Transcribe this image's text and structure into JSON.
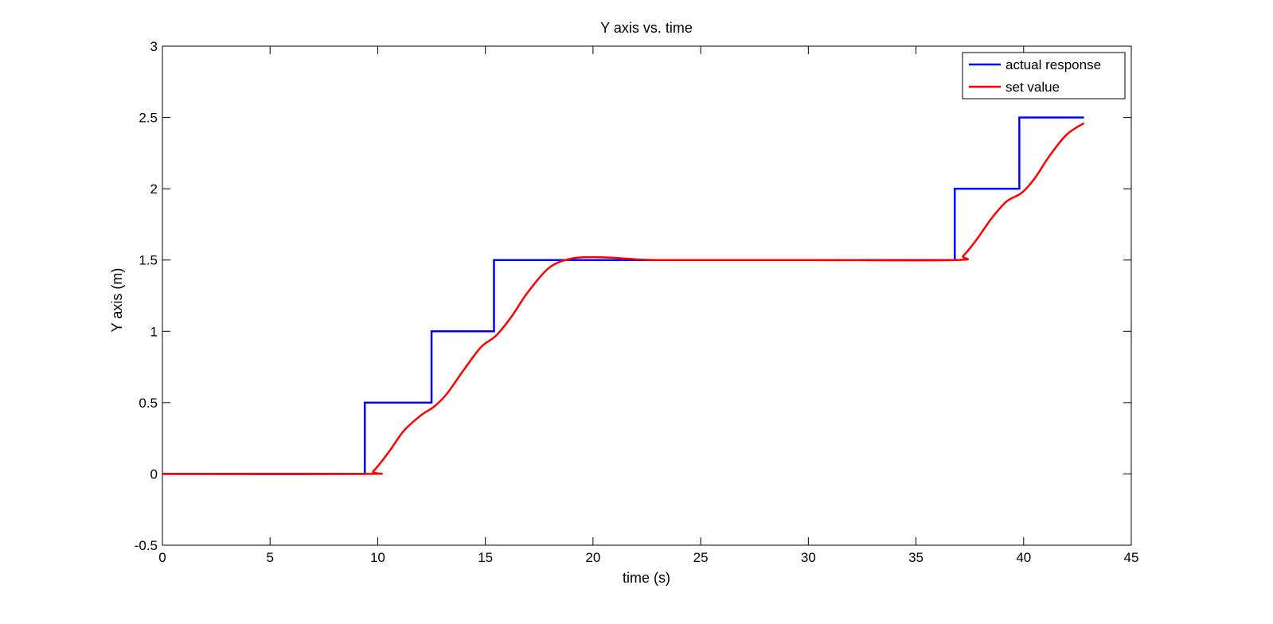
{
  "chart_data": {
    "type": "line",
    "title": "Y axis vs. time",
    "xlabel": "time (s)",
    "ylabel": "Y axis (m)",
    "xlim": [
      0,
      45
    ],
    "ylim": [
      -0.5,
      3
    ],
    "xticks": [
      0,
      5,
      10,
      15,
      20,
      25,
      30,
      35,
      40,
      45
    ],
    "yticks": [
      -0.5,
      0,
      0.5,
      1,
      1.5,
      2,
      2.5,
      3
    ],
    "xtick_labels": [
      "0",
      "5",
      "10",
      "15",
      "20",
      "25",
      "30",
      "35",
      "40",
      "45"
    ],
    "ytick_labels": [
      "-0.5",
      "0",
      "0.5",
      "1",
      "1.5",
      "2",
      "2.5",
      "3"
    ],
    "grid": false,
    "legend_position": "top-right",
    "series": [
      {
        "name": "actual response",
        "color": "#0000ff",
        "step": true,
        "x": [
          0,
          9.4,
          9.4,
          12.5,
          12.5,
          15.4,
          15.4,
          36.8,
          36.8,
          39.8,
          39.8,
          42.8
        ],
        "y": [
          0,
          0,
          0.5,
          0.5,
          1.0,
          1.0,
          1.5,
          1.5,
          2.0,
          2.0,
          2.5,
          2.5
        ]
      },
      {
        "name": "set value",
        "color": "#ff0000",
        "step": false,
        "x": [
          0,
          9.4,
          9.8,
          10.5,
          11.2,
          12.0,
          12.6,
          13.2,
          14.0,
          14.8,
          15.5,
          16.2,
          17.0,
          18.0,
          19.0,
          20.0,
          21.0,
          22.0,
          23.0,
          25.0,
          30.0,
          36.8,
          37.2,
          37.8,
          38.5,
          39.2,
          39.9,
          40.5,
          41.2,
          42.0,
          42.8
        ],
        "y": [
          0,
          0,
          0.02,
          0.15,
          0.3,
          0.41,
          0.47,
          0.56,
          0.73,
          0.89,
          0.97,
          1.1,
          1.28,
          1.45,
          1.51,
          1.52,
          1.515,
          1.505,
          1.5,
          1.5,
          1.5,
          1.5,
          1.53,
          1.64,
          1.79,
          1.91,
          1.97,
          2.07,
          2.23,
          2.38,
          2.46
        ]
      }
    ]
  }
}
